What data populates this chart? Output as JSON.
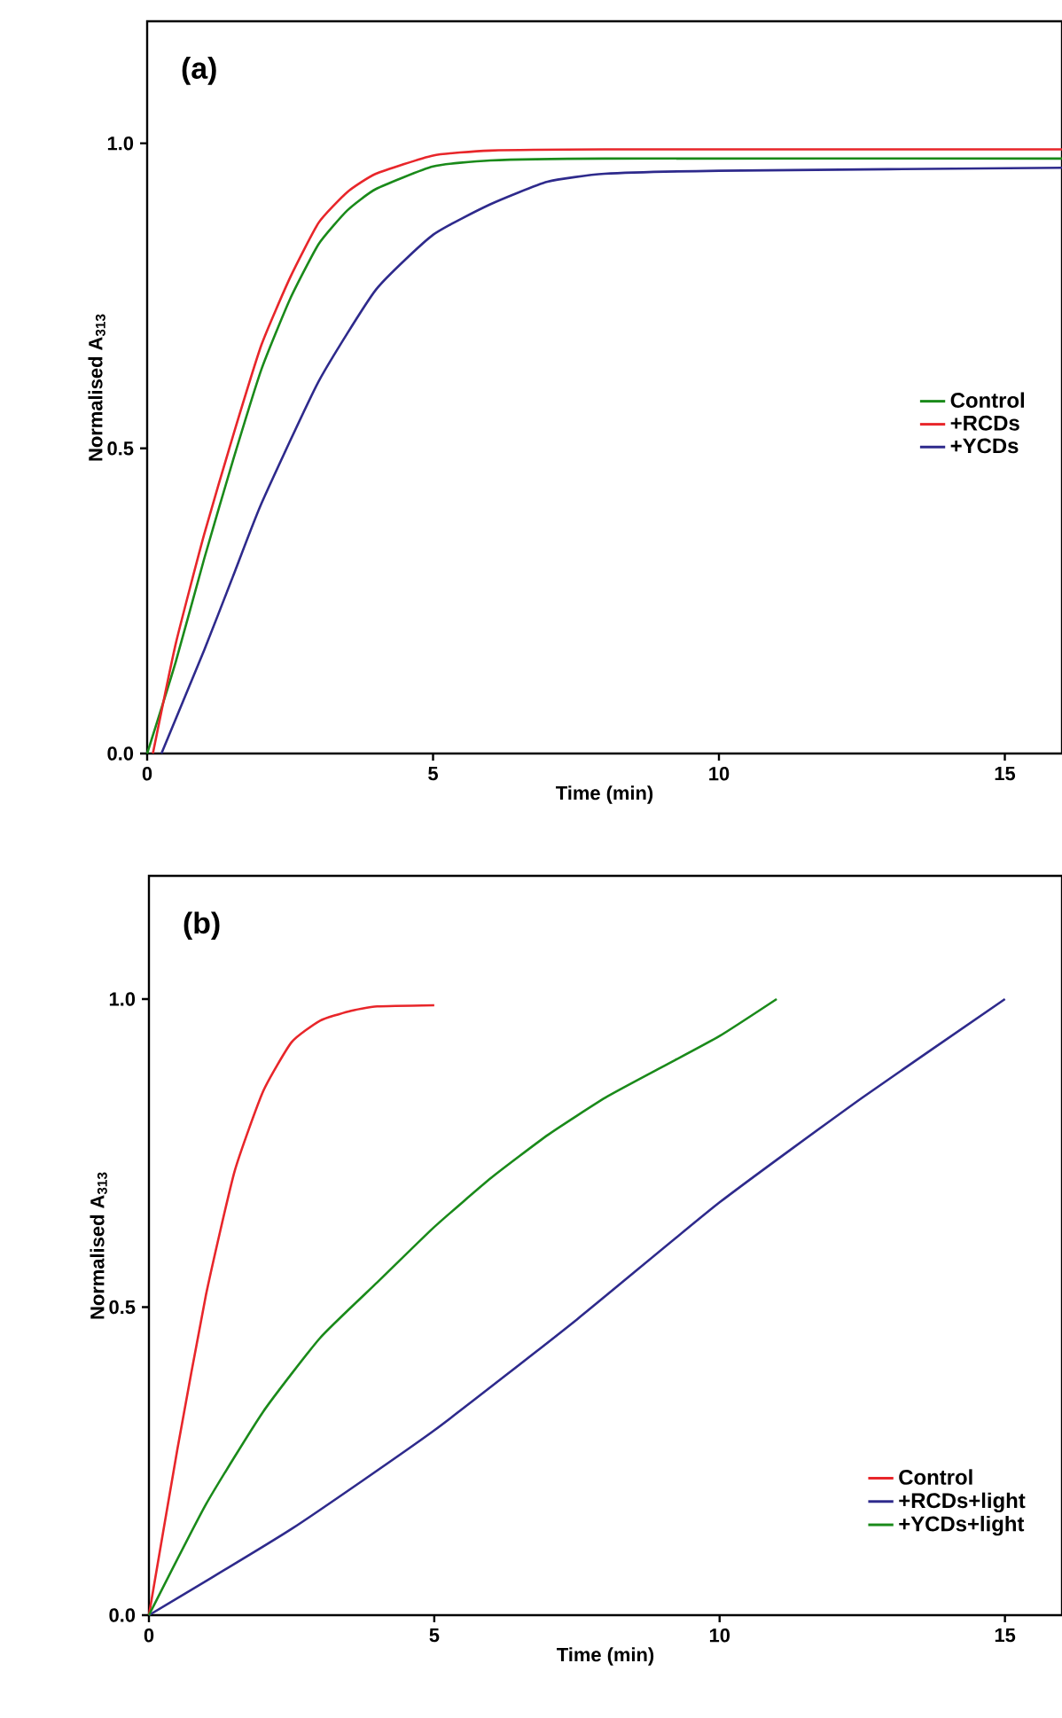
{
  "chart_data": [
    {
      "type": "line",
      "xlabel": "Time (min)",
      "ylabel": "Normalised A$_{313}$",
      "annotations": [
        "(a)"
      ],
      "xlim": [
        0,
        16
      ],
      "ylim": [
        0,
        1.2
      ],
      "xticks": [
        0,
        5,
        10,
        15
      ],
      "yticks": [
        {
          "value": 0,
          "label": "0.0"
        },
        {
          "value": 0.5,
          "label": "0.5"
        },
        {
          "value": 1,
          "label": "1.0"
        }
      ],
      "legend": "right",
      "grid": false,
      "series": [
        {
          "name": "Control",
          "color": "#1a8a1a",
          "x": [
            0,
            0.5,
            1,
            1.5,
            2,
            2.5,
            3,
            3.5,
            4,
            5,
            6,
            8,
            16
          ],
          "values": [
            0,
            0.15,
            0.32,
            0.48,
            0.63,
            0.745,
            0.835,
            0.89,
            0.925,
            0.962,
            0.972,
            0.975,
            0.975
          ]
        },
        {
          "name": "+RCDs",
          "color": "#e8262a",
          "x": [
            0.1,
            0.5,
            1,
            1.5,
            2,
            2.5,
            3,
            3.5,
            4,
            5,
            6,
            8,
            16
          ],
          "values": [
            0,
            0.18,
            0.36,
            0.52,
            0.67,
            0.78,
            0.87,
            0.92,
            0.95,
            0.98,
            0.988,
            0.99,
            0.99
          ]
        },
        {
          "name": "+YCDs",
          "color": "#2e2a8c",
          "x": [
            0.25,
            1,
            1.5,
            2,
            3,
            4,
            5,
            6,
            7,
            8,
            10,
            16
          ],
          "values": [
            0,
            0.17,
            0.29,
            0.41,
            0.61,
            0.76,
            0.85,
            0.9,
            0.937,
            0.95,
            0.955,
            0.96
          ]
        }
      ]
    },
    {
      "type": "line",
      "xlabel": "Time (min)",
      "ylabel": "Normalised A$_{313}$",
      "annotations": [
        "(b)"
      ],
      "xlim": [
        0,
        16
      ],
      "ylim": [
        0,
        1.2
      ],
      "xticks": [
        0,
        5,
        10,
        15
      ],
      "yticks": [
        {
          "value": 0,
          "label": "0.0"
        },
        {
          "value": 0.5,
          "label": "0.5"
        },
        {
          "value": 1,
          "label": "1.0"
        }
      ],
      "legend": "bottom right",
      "grid": false,
      "series": [
        {
          "name": "Control",
          "color": "#e8262a",
          "x": [
            0,
            0.5,
            1,
            1.5,
            2,
            2.5,
            3,
            3.5,
            4,
            5
          ],
          "values": [
            0,
            0.27,
            0.52,
            0.72,
            0.85,
            0.93,
            0.965,
            0.98,
            0.988,
            0.99
          ]
        },
        {
          "name": "+RCDs+light",
          "color": "#2e2a8c",
          "x": [
            0,
            2.5,
            5,
            7.5,
            10,
            12.5,
            15
          ],
          "values": [
            0,
            0.14,
            0.3,
            0.48,
            0.67,
            0.84,
            1.0
          ]
        },
        {
          "name": "+YCDs+light",
          "color": "#1a8a1a",
          "x": [
            0,
            1,
            2,
            3,
            4,
            5,
            6,
            7,
            8,
            9,
            10,
            11
          ],
          "values": [
            0,
            0.18,
            0.33,
            0.45,
            0.54,
            0.63,
            0.71,
            0.78,
            0.84,
            0.89,
            0.94,
            1.0
          ]
        }
      ]
    }
  ]
}
